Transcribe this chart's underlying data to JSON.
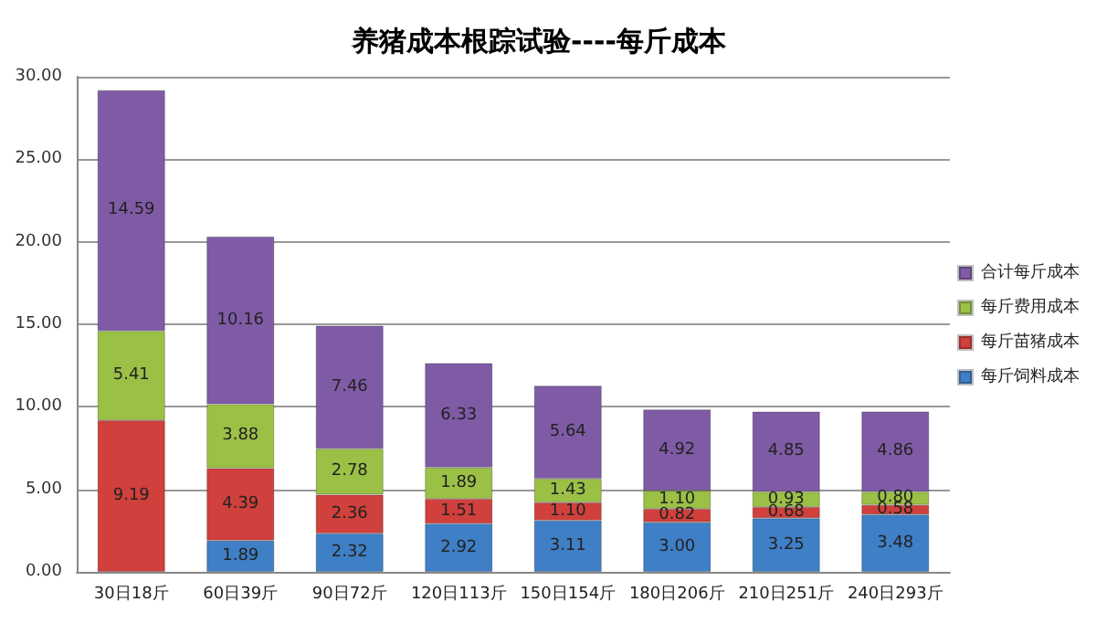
{
  "chart_data": {
    "type": "bar",
    "title": "养猪成本根踪试验----每斤成本",
    "stacked": true,
    "grid": "y",
    "legend": "right",
    "categories": [
      "30日18斤",
      "60日39斤",
      "90日72斤",
      "120日113斤",
      "150日154斤",
      "180日206斤",
      "210日251斤",
      "240日293斤"
    ],
    "series": [
      {
        "name": "每斤饲料成本",
        "color": "#3f7fc6",
        "values": [
          null,
          1.89,
          2.32,
          2.92,
          3.11,
          3.0,
          3.25,
          3.48
        ],
        "value_labels": [
          null,
          "1.89",
          "2.32",
          "2.92",
          "3.11",
          "3.00",
          "3.25",
          "3.48"
        ]
      },
      {
        "name": "每斤苗猪成本",
        "color": "#d0403c",
        "values": [
          9.19,
          4.39,
          2.36,
          1.51,
          1.1,
          0.82,
          0.68,
          0.58
        ],
        "value_labels": [
          "9.19",
          "4.39",
          "2.36",
          "1.51",
          "1.10",
          "0.82",
          "0.68",
          "0.58"
        ]
      },
      {
        "name": "每斤费用成本",
        "color": "#9bc046",
        "values": [
          5.41,
          3.88,
          2.78,
          1.89,
          1.43,
          1.1,
          0.93,
          0.8
        ],
        "value_labels": [
          "5.41",
          "3.88",
          "2.78",
          "1.89",
          "1.43",
          "1.10",
          "0.93",
          "0.80"
        ]
      },
      {
        "name": "合计每斤成本",
        "color": "#7f5ba6",
        "values": [
          14.59,
          10.16,
          7.46,
          6.33,
          5.64,
          4.92,
          4.85,
          4.86
        ],
        "value_labels": [
          "14.59",
          "10.16",
          "7.46",
          "6.33",
          "5.64",
          "4.92",
          "4.85",
          "4.86"
        ]
      }
    ],
    "ylim": [
      0,
      30
    ],
    "yticks": [
      {
        "value": 0,
        "label": "0.00"
      },
      {
        "value": 5,
        "label": "5.00"
      },
      {
        "value": 10,
        "label": "10.00"
      },
      {
        "value": 15,
        "label": "15.00"
      },
      {
        "value": 20,
        "label": "20.00"
      },
      {
        "value": 25,
        "label": "25.00"
      },
      {
        "value": 30,
        "label": "30.00"
      }
    ]
  }
}
